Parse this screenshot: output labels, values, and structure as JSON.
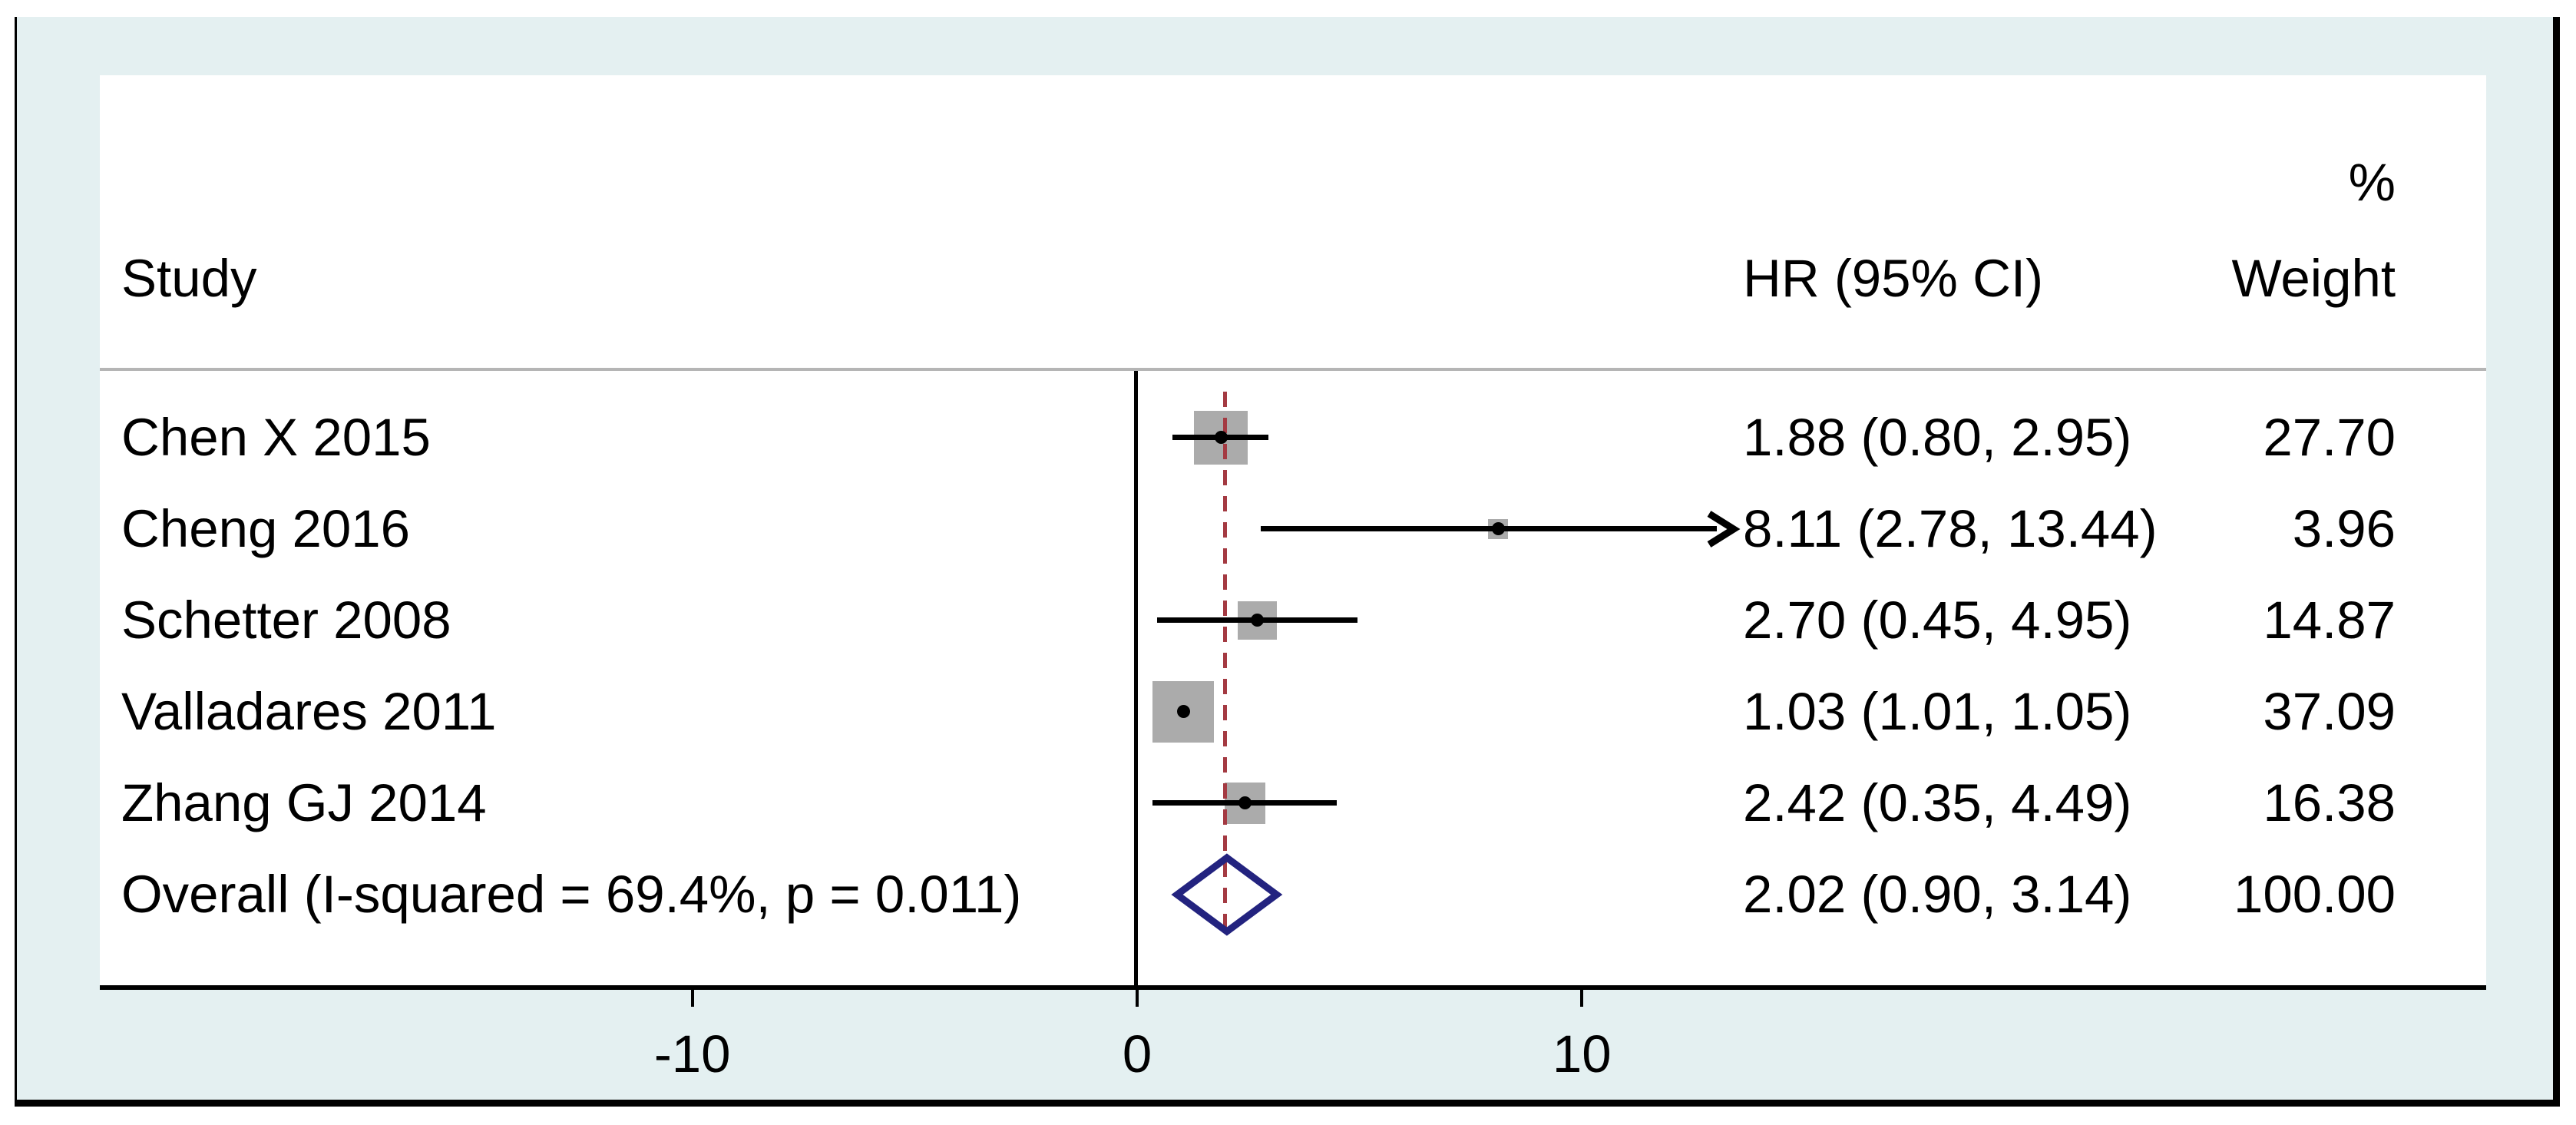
{
  "figure": {
    "headers": {
      "study": "Study",
      "hr": "HR (95% CI)",
      "percent": "%",
      "weight": "Weight"
    },
    "colors": {
      "background": "#e4f0f1",
      "plot_background": "#ffffff",
      "square": "#ababab",
      "diamond_outline": "#23237f",
      "overall_line": "#a43a42",
      "axis": "#000000",
      "separator": "#b5b5b5",
      "text": "#000000"
    }
  },
  "chart_data": {
    "type": "forest",
    "effect_measure": "HR",
    "x_ticks": [
      {
        "value": -10,
        "label": "-10"
      },
      {
        "value": 0,
        "label": "0"
      },
      {
        "value": 10,
        "label": "10"
      }
    ],
    "xlim": [
      -12.4,
      14.9
    ],
    "null_line_value": 0,
    "overall_line_value": 2.02,
    "studies": [
      {
        "name": "Chen X 2015",
        "hr": 1.88,
        "ci_low": 0.8,
        "ci_high": 2.95,
        "hr_label": "1.88 (0.80, 2.95)",
        "weight": 27.7,
        "weight_label": "27.70",
        "arrow_high": false
      },
      {
        "name": "Cheng 2016",
        "hr": 8.11,
        "ci_low": 2.78,
        "ci_high": 13.44,
        "hr_label": "8.11 (2.78, 13.44)",
        "weight": 3.96,
        "weight_label": "3.96",
        "arrow_high": true
      },
      {
        "name": "Schetter 2008",
        "hr": 2.7,
        "ci_low": 0.45,
        "ci_high": 4.95,
        "hr_label": "2.70 (0.45, 4.95)",
        "weight": 14.87,
        "weight_label": "14.87",
        "arrow_high": false
      },
      {
        "name": "Valladares 2011",
        "hr": 1.03,
        "ci_low": 1.01,
        "ci_high": 1.05,
        "hr_label": "1.03 (1.01, 1.05)",
        "weight": 37.09,
        "weight_label": "37.09",
        "arrow_high": false
      },
      {
        "name": "Zhang GJ 2014",
        "hr": 2.42,
        "ci_low": 0.35,
        "ci_high": 4.49,
        "hr_label": "2.42 (0.35, 4.49)",
        "weight": 16.38,
        "weight_label": "16.38",
        "arrow_high": false
      }
    ],
    "overall": {
      "name": "Overall (I-squared = 69.4%, p = 0.011)",
      "hr": 2.02,
      "ci_low": 0.9,
      "ci_high": 3.14,
      "hr_label": "2.02 (0.90, 3.14)",
      "weight": 100.0,
      "weight_label": "100.00"
    },
    "heterogeneity": {
      "i_squared_pct": 69.4,
      "p_value": 0.011
    }
  }
}
